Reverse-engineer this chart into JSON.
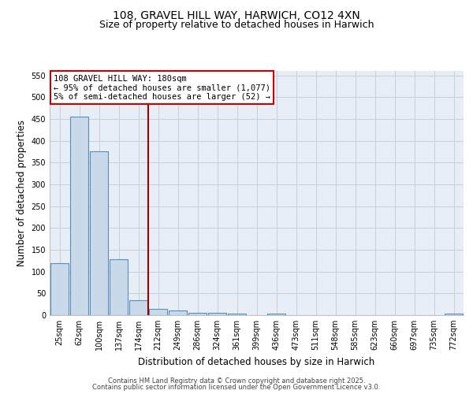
{
  "title1": "108, GRAVEL HILL WAY, HARWICH, CO12 4XN",
  "title2": "Size of property relative to detached houses in Harwich",
  "xlabel": "Distribution of detached houses by size in Harwich",
  "ylabel": "Number of detached properties",
  "categories": [
    "25sqm",
    "62sqm",
    "100sqm",
    "137sqm",
    "174sqm",
    "212sqm",
    "249sqm",
    "286sqm",
    "324sqm",
    "361sqm",
    "399sqm",
    "436sqm",
    "473sqm",
    "511sqm",
    "548sqm",
    "585sqm",
    "623sqm",
    "660sqm",
    "697sqm",
    "735sqm",
    "772sqm"
  ],
  "values": [
    120,
    455,
    375,
    128,
    35,
    15,
    10,
    6,
    6,
    3,
    0,
    3,
    0,
    0,
    0,
    0,
    0,
    0,
    0,
    0,
    4
  ],
  "bar_color": "#c9d9ea",
  "bar_edge_color": "#5b8db8",
  "vline_color": "#990000",
  "annotation_line1": "108 GRAVEL HILL WAY: 180sqm",
  "annotation_line2": "← 95% of detached houses are smaller (1,077)",
  "annotation_line3": "5% of semi-detached houses are larger (52) →",
  "annotation_box_color": "#cc0000",
  "ylim": [
    0,
    560
  ],
  "yticks": [
    0,
    50,
    100,
    150,
    200,
    250,
    300,
    350,
    400,
    450,
    500,
    550
  ],
  "grid_color": "#c8d0dc",
  "bg_color": "#e8eef5",
  "footer1": "Contains HM Land Registry data © Crown copyright and database right 2025.",
  "footer2": "Contains public sector information licensed under the Open Government Licence v3.0.",
  "title_fontsize": 10,
  "subtitle_fontsize": 9,
  "axis_label_fontsize": 8.5,
  "tick_fontsize": 7,
  "annotation_fontsize": 7.5,
  "footer_fontsize": 6
}
